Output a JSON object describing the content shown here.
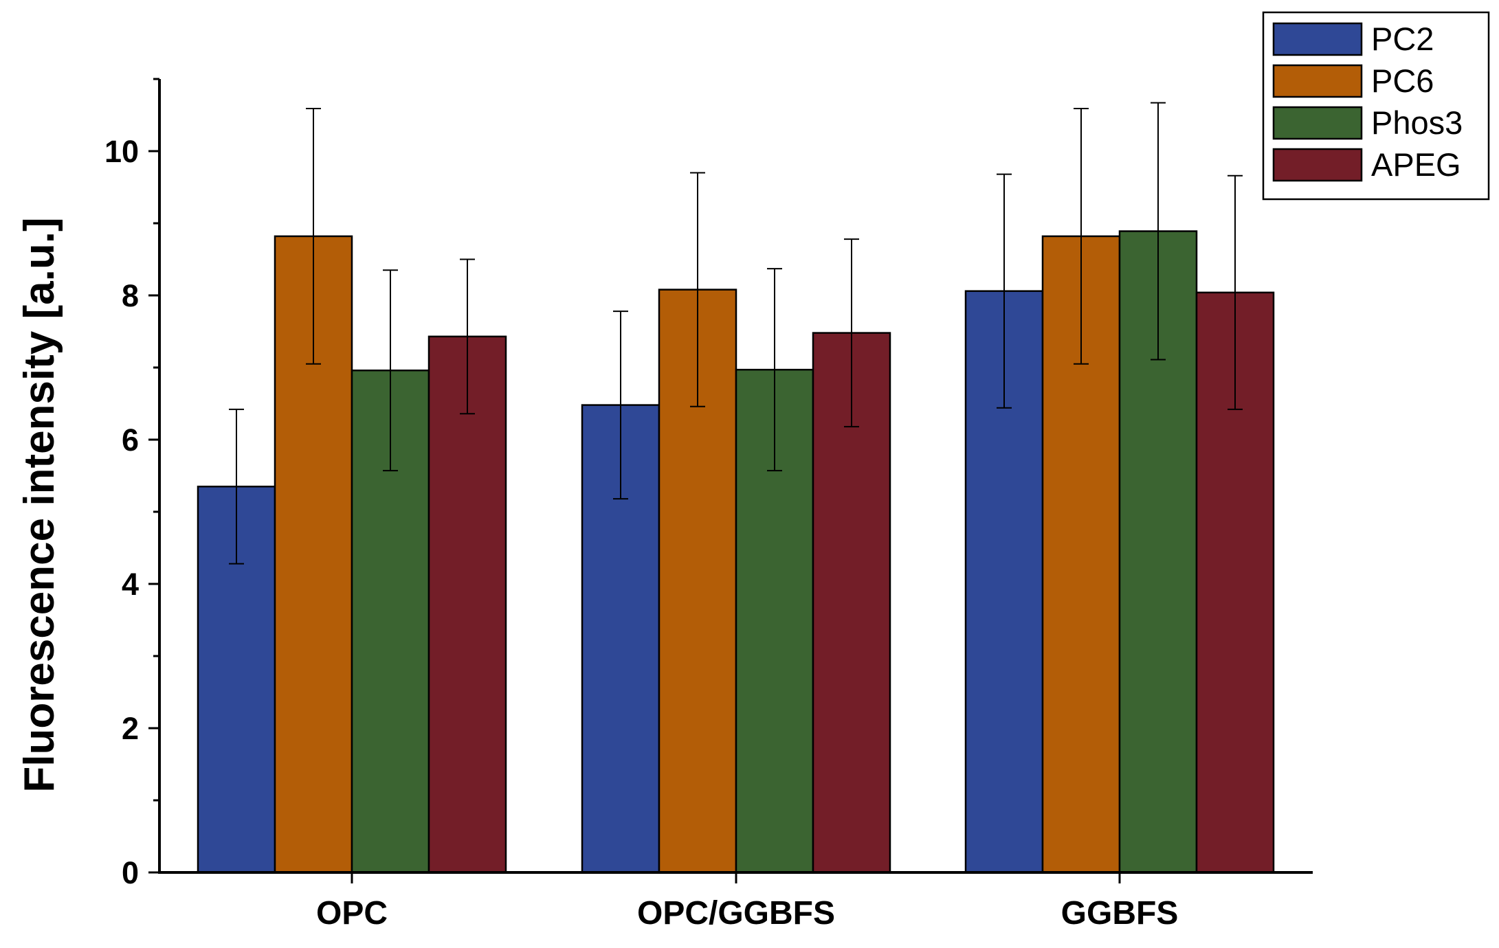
{
  "chart_data": {
    "type": "bar",
    "title": "",
    "xlabel": "",
    "ylabel": "Fluorescence intensity [a.u.]",
    "ylim": [
      0,
      11
    ],
    "yticks": [
      0,
      2,
      4,
      6,
      8,
      10
    ],
    "grid": false,
    "legend_position": "top-right",
    "categories": [
      "OPC",
      "OPC/GGBFS",
      "GGBFS"
    ],
    "series": [
      {
        "name": "PC2",
        "color": "#2f4896",
        "values": [
          5.35,
          6.48,
          8.06
        ],
        "errors": [
          1.07,
          1.3,
          1.62
        ]
      },
      {
        "name": "PC6",
        "color": "#b35d07",
        "values": [
          8.82,
          8.08,
          8.82
        ],
        "errors": [
          1.77,
          1.62,
          1.77
        ]
      },
      {
        "name": "Phos3",
        "color": "#3b6431",
        "values": [
          6.96,
          6.97,
          8.89
        ],
        "errors": [
          1.39,
          1.4,
          1.78
        ]
      },
      {
        "name": "APEG",
        "color": "#731e28",
        "values": [
          7.43,
          7.48,
          8.04
        ],
        "errors": [
          1.07,
          1.3,
          1.62
        ]
      }
    ]
  }
}
